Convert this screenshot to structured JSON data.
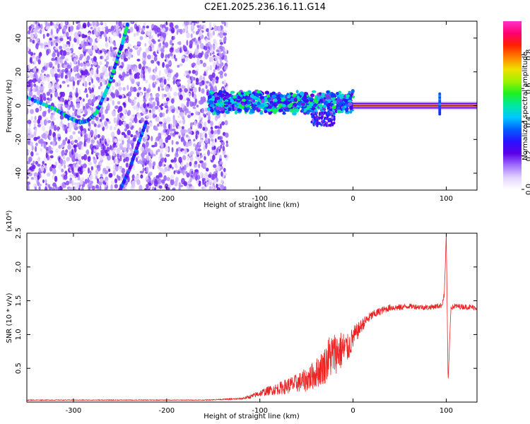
{
  "title": "C2E1.2025.236.16.11.G14",
  "chart_data": [
    {
      "type": "heatmap",
      "xlabel": "Height of straight line (km)",
      "ylabel": "Frequency (Hz)",
      "xlim": [
        -350,
        133
      ],
      "ylim": [
        -50,
        50
      ],
      "xticks": [
        -300,
        -200,
        -100,
        0,
        100
      ],
      "yticks": [
        -40,
        -20,
        0,
        20,
        40
      ],
      "grid": false,
      "colorbar": {
        "label": "Normalized spectral amplitude",
        "range": [
          0.0,
          1.0
        ],
        "ticks": [
          0.0,
          0.2,
          0.4,
          0.6,
          0.8
        ],
        "colors": [
          "#ffffff",
          "#e3d3ff",
          "#a070ff",
          "#5a00e8",
          "#2a12ff",
          "#0060ff",
          "#00c8ff",
          "#00e8a0",
          "#20f020",
          "#a0f000",
          "#f0e000",
          "#ff8000",
          "#ff2000",
          "#ff0070",
          "#ff30c8"
        ]
      },
      "features": [
        {
          "name": "scattered noise",
          "x_range": [
            -350,
            -135
          ],
          "amplitude": 0.15
        },
        {
          "name": "curved trace",
          "points": [
            [
              -350,
              5
            ],
            [
              -320,
              -2
            ],
            [
              -305,
              -7
            ],
            [
              -293,
              -10
            ],
            [
              -285,
              -9
            ],
            [
              -275,
              -4
            ],
            [
              -268,
              5
            ],
            [
              -262,
              12
            ],
            [
              -255,
              24
            ],
            [
              -248,
              36
            ],
            [
              -242,
              48
            ]
          ],
          "amplitude": 0.35
        },
        {
          "name": "lower diagonal trace",
          "points": [
            [
              -250,
              -50
            ],
            [
              -240,
              -38
            ],
            [
              -232,
              -25
            ],
            [
              -222,
              -10
            ]
          ],
          "amplitude": 0.25
        },
        {
          "name": "central band",
          "x_range": [
            -155,
            0
          ],
          "y_range": [
            -3,
            7
          ],
          "amplitude": 0.4
        },
        {
          "name": "carrier line",
          "x_range": [
            0,
            133
          ],
          "y": 0,
          "amplitude": 0.9
        },
        {
          "name": "spike",
          "x": 93,
          "y_range": [
            -5,
            7
          ],
          "amplitude": 0.3
        }
      ]
    },
    {
      "type": "line",
      "xlabel": "Height of straight line (km)",
      "ylabel": "SNR (10 * v/v)",
      "y_multiplier": "(x10⁴)",
      "xlim": [
        -350,
        133
      ],
      "ylim": [
        0,
        2.5
      ],
      "xticks": [
        -300,
        -200,
        -100,
        0,
        100
      ],
      "yticks": [
        0.5,
        1.0,
        1.5,
        2.0,
        2.5
      ],
      "grid": false,
      "series": [
        {
          "color": "#ee2222",
          "x": [
            -350,
            -300,
            -250,
            -200,
            -160,
            -140,
            -120,
            -110,
            -100,
            -90,
            -80,
            -70,
            -60,
            -50,
            -40,
            -30,
            -25,
            -20,
            -15,
            -10,
            -5,
            0,
            5,
            10,
            15,
            20,
            30,
            40,
            50,
            60,
            70,
            80,
            90,
            95,
            98,
            100,
            102,
            105,
            110,
            120,
            133
          ],
          "y": [
            0.03,
            0.03,
            0.03,
            0.03,
            0.03,
            0.04,
            0.05,
            0.08,
            0.13,
            0.17,
            0.2,
            0.24,
            0.28,
            0.33,
            0.42,
            0.55,
            0.68,
            0.72,
            0.75,
            0.78,
            0.8,
            0.95,
            1.05,
            1.15,
            1.22,
            1.28,
            1.35,
            1.4,
            1.4,
            1.42,
            1.41,
            1.4,
            1.42,
            1.43,
            1.6,
            2.5,
            0.3,
            1.4,
            1.42,
            1.41,
            1.4
          ],
          "noise": [
            0.005,
            0.005,
            0.005,
            0.005,
            0.005,
            0.008,
            0.015,
            0.03,
            0.05,
            0.07,
            0.09,
            0.12,
            0.14,
            0.18,
            0.22,
            0.28,
            0.35,
            0.32,
            0.3,
            0.28,
            0.2,
            0.18,
            0.12,
            0.1,
            0.08,
            0.07,
            0.06,
            0.05,
            0.05,
            0.04,
            0.04,
            0.04,
            0.04,
            0.04,
            0.04,
            0.0,
            0.0,
            0.04,
            0.04,
            0.04,
            0.04
          ]
        }
      ]
    }
  ]
}
